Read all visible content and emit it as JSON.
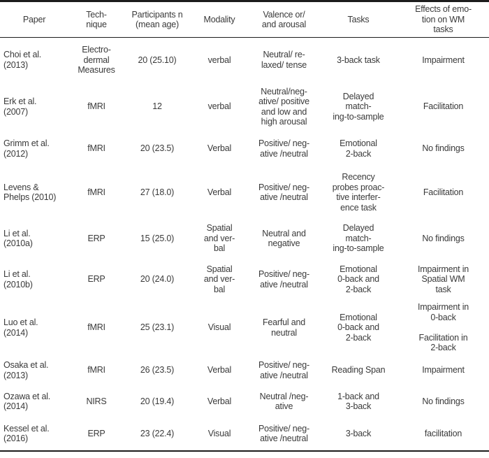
{
  "colors": {
    "text": "#3a3a3a",
    "rule": "#1c1c1c",
    "background": "#ffffff"
  },
  "table": {
    "columns": [
      "Paper",
      "Tech-\nnique",
      "Participants n\n(mean age)",
      "Modality",
      "Valence or/\nand arousal",
      "Tasks",
      "Effects of emo-\ntion on WM\ntasks"
    ],
    "rows": [
      {
        "cells": [
          "Choi et al.\n(2013)",
          "Electro-\ndermal\nMeasures",
          "20 (25.10)",
          "verbal",
          "Neutral/ re-\nlaxed/ tense",
          "3-back task",
          "Impairment"
        ]
      },
      {
        "cells": [
          "Erk et al.\n(2007)",
          "fMRI",
          "12",
          "verbal",
          "Neutral/neg-\native/ positive\nand low and\nhigh arousal",
          "Delayed\nmatch-\ning-to-sample",
          "Facilitation"
        ]
      },
      {
        "cells": [
          "Grimm et al.\n(2012)",
          "fMRI",
          "20 (23.5)",
          "Verbal",
          "Positive/ neg-\native /neutral",
          "Emotional\n2-back",
          "No findings"
        ]
      },
      {
        "cells": [
          "Levens &\nPhelps (2010)",
          "fMRI",
          "27 (18.0)",
          "Verbal",
          "Positive/ neg-\native /neutral",
          "Recency\nprobes proac-\ntive interfer-\nence task",
          "Facilitation"
        ]
      },
      {
        "cells": [
          "Li et al.\n(2010a)",
          "ERP",
          "15 (25.0)",
          "Spatial\nand ver-\nbal",
          "Neutral and\nnegative",
          "Delayed\nmatch-\ning-to-sample",
          "No findings"
        ]
      },
      {
        "cells": [
          "Li et al.\n(2010b)",
          "ERP",
          "20 (24.0)",
          "Spatial\nand ver-\nbal",
          "Positive/ neg-\native /neutral",
          "Emotional\n0-back and\n2-back",
          "Impairment in\nSpatial WM\ntask"
        ]
      },
      {
        "cells": [
          "Luo et al.\n(2014)",
          "fMRI",
          "25 (23.1)",
          "Visual",
          "Fearful and\nneutral",
          "Emotional\n0-back and\n2-back",
          "Impairment in\n0-back\n\nFacilitation in\n2-back"
        ]
      },
      {
        "cells": [
          "Osaka et al.\n(2013)",
          "fMRI",
          "26 (23.5)",
          "Verbal",
          "Positive/ neg-\native /neutral",
          "Reading Span",
          "Impairment"
        ]
      },
      {
        "cells": [
          "Ozawa et al.\n(2014)",
          "NIRS",
          "20 (19.4)",
          "Verbal",
          "Neutral /neg-\native",
          "1-back and\n3-back",
          "No findings"
        ]
      },
      {
        "cells": [
          "Kessel et al.\n(2016)",
          "ERP",
          "23 (22.4)",
          "Visual",
          "Positive/ neg-\native /neutral",
          "3-back",
          "facilitation"
        ]
      }
    ]
  }
}
